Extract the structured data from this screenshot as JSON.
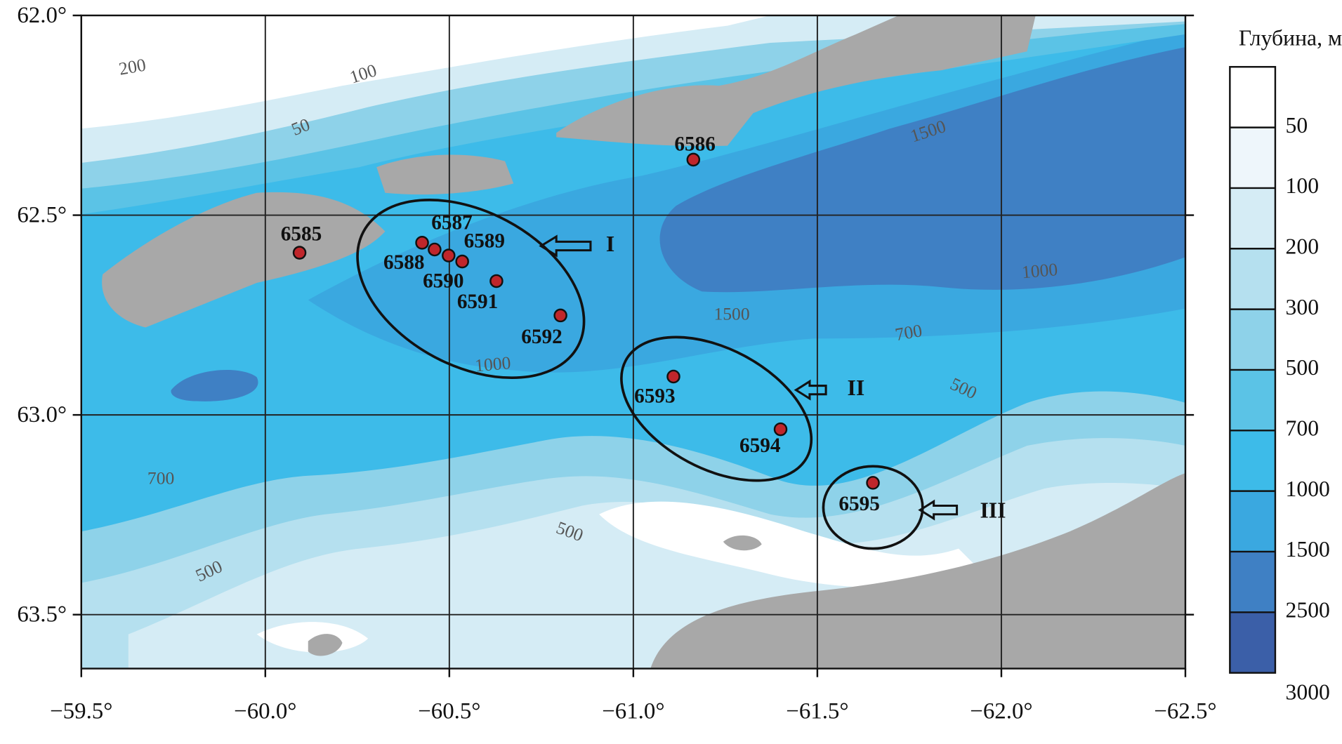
{
  "map": {
    "xlim": [
      -59.5,
      -62.5
    ],
    "ylim": [
      62.0,
      63.635
    ],
    "xticks": [
      {
        "value": -59.5,
        "label": "−59.5°"
      },
      {
        "value": -60.0,
        "label": "−60.0°"
      },
      {
        "value": -60.5,
        "label": "−60.5°"
      },
      {
        "value": -61.0,
        "label": "−61.0°"
      },
      {
        "value": -61.5,
        "label": "−61.5°"
      },
      {
        "value": -62.0,
        "label": "−62.0°"
      },
      {
        "value": -62.5,
        "label": "−62.5°"
      }
    ],
    "yticks": [
      {
        "value": 62.0,
        "label": "62.0°"
      },
      {
        "value": 62.5,
        "label": "62.5°"
      },
      {
        "value": 63.0,
        "label": "63.0°"
      },
      {
        "value": 63.5,
        "label": "63.5°"
      }
    ],
    "grid": true,
    "stations": [
      {
        "name": "6585",
        "lon": -60.093,
        "lat": 62.594
      },
      {
        "name": "6586",
        "lon": -61.163,
        "lat": 62.361
      },
      {
        "name": "6587",
        "lon": -60.426,
        "lat": 62.569
      },
      {
        "name": "6588",
        "lon": -60.46,
        "lat": 62.586
      },
      {
        "name": "6589",
        "lon": -60.535,
        "lat": 62.616
      },
      {
        "name": "6590",
        "lon": -60.498,
        "lat": 62.601
      },
      {
        "name": "6591",
        "lon": -60.628,
        "lat": 62.665
      },
      {
        "name": "6592",
        "lon": -60.802,
        "lat": 62.751
      },
      {
        "name": "6593",
        "lon": -61.109,
        "lat": 62.904
      },
      {
        "name": "6594",
        "lon": -61.4,
        "lat": 63.036
      },
      {
        "name": "6595",
        "lon": -61.651,
        "lat": 63.17
      }
    ],
    "station_color": "#c0262b",
    "contour_labels": [
      "200",
      "100",
      "50",
      "1500",
      "1000",
      "1500",
      "1000",
      "700",
      "500",
      "700",
      "500",
      "500"
    ],
    "regions": [
      "I",
      "II",
      "III"
    ],
    "colorbar": {
      "title": "Глубина, м",
      "levels": [
        50,
        100,
        200,
        300,
        500,
        700,
        1000,
        1500,
        2500,
        3000
      ],
      "colors": [
        "#ffffff",
        "#eef6fb",
        "#d5ecf5",
        "#b5e0ef",
        "#8ed2e9",
        "#5bc3e6",
        "#3dbbe9",
        "#3aa8e0",
        "#3f80c4",
        "#3b5fa8"
      ]
    }
  }
}
